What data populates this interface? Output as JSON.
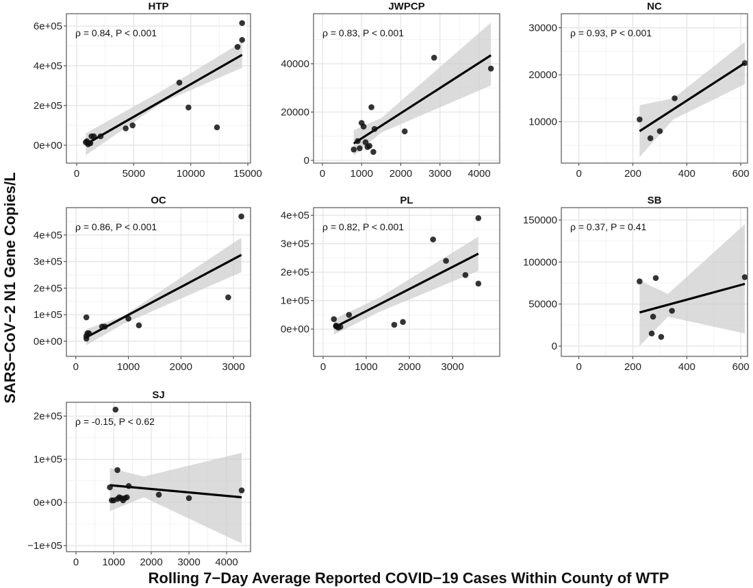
{
  "chart_data": {
    "type": "scatter",
    "ylabel": "SARS−CoV−2 N1 Gene Copies/L",
    "xlabel": "Rolling 7−Day Average Reported COVID−19 Cases Within County of WTP",
    "grid": true,
    "panels": [
      {
        "title": "HTP",
        "annotation": "ρ = 0.84, P < 0.001",
        "xlim": [
          -900,
          15240
        ],
        "ylim": [
          -90000,
          662000
        ],
        "xticks": [
          0,
          5000,
          10000,
          15000
        ],
        "xtick_labels": [
          "0",
          "5000",
          "10000",
          "15000"
        ],
        "yticks": [
          0,
          200000,
          400000,
          600000
        ],
        "ytick_labels": [
          "0e+00",
          "2e+05",
          "4e+05",
          "6e+05"
        ],
        "points": [
          [
            800,
            15000
          ],
          [
            900,
            20000
          ],
          [
            1000,
            5000
          ],
          [
            1100,
            10000
          ],
          [
            1200,
            10000
          ],
          [
            1300,
            45000
          ],
          [
            1500,
            45000
          ],
          [
            2100,
            45000
          ],
          [
            4300,
            85000
          ],
          [
            4900,
            100000
          ],
          [
            9000,
            315000
          ],
          [
            9800,
            190000
          ],
          [
            12300,
            90000
          ],
          [
            14100,
            495000
          ],
          [
            14500,
            530000
          ],
          [
            14500,
            615000
          ]
        ],
        "fit": [
          [
            800,
            5000
          ],
          [
            14500,
            455000
          ]
        ],
        "band": [
          [
            800,
            -50000,
            60000
          ],
          [
            7500,
            215000,
            275000
          ],
          [
            14500,
            390000,
            520000
          ]
        ]
      },
      {
        "title": "JWPCP",
        "annotation": "ρ = 0.83, P < 0.001",
        "xlim": [
          -227,
          4524
        ],
        "ylim": [
          -1130,
          60700
        ],
        "xticks": [
          0,
          1000,
          2000,
          3000,
          4000
        ],
        "xtick_labels": [
          "0",
          "1000",
          "2000",
          "3000",
          "4000"
        ],
        "yticks": [
          0,
          20000,
          40000
        ],
        "ytick_labels": [
          "0",
          "20000",
          "40000"
        ],
        "points": [
          [
            800,
            4500
          ],
          [
            900,
            8000
          ],
          [
            950,
            5000
          ],
          [
            1000,
            15500
          ],
          [
            1050,
            14000
          ],
          [
            1100,
            7500
          ],
          [
            1150,
            5500
          ],
          [
            1200,
            6000
          ],
          [
            1250,
            22000
          ],
          [
            1300,
            3500
          ],
          [
            1330,
            13000
          ],
          [
            2100,
            12000
          ],
          [
            2850,
            42500
          ],
          [
            4300,
            38000
          ]
        ],
        "fit": [
          [
            800,
            7000
          ],
          [
            4300,
            43500
          ]
        ],
        "band": [
          [
            800,
            2000,
            12500
          ],
          [
            1500,
            11500,
            17500
          ],
          [
            4300,
            31000,
            57000
          ]
        ]
      },
      {
        "title": "NC",
        "annotation": "ρ = 0.93, P < 0.001",
        "xlim": [
          -65,
          625
        ],
        "ylim": [
          1200,
          33000
        ],
        "xticks": [
          0,
          200,
          400,
          600
        ],
        "xtick_labels": [
          "0",
          "200",
          "400",
          "600"
        ],
        "yticks": [
          10000,
          20000,
          30000
        ],
        "ytick_labels": [
          "10000",
          "20000",
          "30000"
        ],
        "points": [
          [
            225,
            10500
          ],
          [
            265,
            6500
          ],
          [
            300,
            8000
          ],
          [
            355,
            15000
          ],
          [
            615,
            22500
          ]
        ],
        "fit": [
          [
            225,
            8000
          ],
          [
            615,
            22500
          ]
        ],
        "band": [
          [
            225,
            2500,
            13500
          ],
          [
            350,
            10500,
            15000
          ],
          [
            615,
            18000,
            27000
          ]
        ]
      },
      {
        "title": "OC",
        "annotation": "ρ = 0.86, P < 0.001",
        "xlim": [
          -180,
          3325
        ],
        "ylim": [
          -57000,
          503000
        ],
        "xticks": [
          0,
          1000,
          2000,
          3000
        ],
        "xtick_labels": [
          "0",
          "1000",
          "2000",
          "3000"
        ],
        "yticks": [
          0,
          100000,
          200000,
          300000,
          400000
        ],
        "ytick_labels": [
          "0e+00",
          "1e+05",
          "2e+05",
          "3e+05",
          "4e+05"
        ],
        "points": [
          [
            200,
            90000
          ],
          [
            200,
            20000
          ],
          [
            200,
            10000
          ],
          [
            220,
            30000
          ],
          [
            250,
            30000
          ],
          [
            500,
            55000
          ],
          [
            550,
            55000
          ],
          [
            1000,
            85000
          ],
          [
            1200,
            60000
          ],
          [
            2900,
            165000
          ],
          [
            3150,
            470000
          ]
        ],
        "fit": [
          [
            200,
            15000
          ],
          [
            3150,
            325000
          ]
        ],
        "band": [
          [
            200,
            -15000,
            45000
          ],
          [
            900,
            65000,
            95000
          ],
          [
            3150,
            260000,
            390000
          ]
        ]
      },
      {
        "title": "PL",
        "annotation": "ρ = 0.82, P < 0.001",
        "xlim": [
          -222,
          4095
        ],
        "ylim": [
          -96000,
          427000
        ],
        "xticks": [
          0,
          1000,
          2000,
          3000
        ],
        "xtick_labels": [
          "0",
          "1000",
          "2000",
          "3000"
        ],
        "yticks": [
          0,
          100000,
          200000,
          300000,
          400000
        ],
        "ytick_labels": [
          "0e+00",
          "1e+05",
          "2e+05",
          "3e+05",
          "4e+05"
        ],
        "points": [
          [
            250,
            35000
          ],
          [
            300,
            10000
          ],
          [
            350,
            5000
          ],
          [
            300,
            12000
          ],
          [
            400,
            8000
          ],
          [
            600,
            50000
          ],
          [
            1650,
            15000
          ],
          [
            1850,
            25000
          ],
          [
            2550,
            315000
          ],
          [
            2850,
            240000
          ],
          [
            3300,
            190000
          ],
          [
            3600,
            390000
          ],
          [
            3600,
            160000
          ]
        ],
        "fit": [
          [
            250,
            5000
          ],
          [
            3600,
            265000
          ]
        ],
        "band": [
          [
            250,
            -20000,
            35000
          ],
          [
            1300,
            60000,
            110000
          ],
          [
            3600,
            205000,
            325000
          ]
        ]
      },
      {
        "title": "SB",
        "annotation": "ρ = 0.37, P = 0.41",
        "xlim": [
          -65,
          625
        ],
        "ylim": [
          -12200,
          164700
        ],
        "xticks": [
          0,
          200,
          400,
          600
        ],
        "xtick_labels": [
          "0",
          "200",
          "400",
          "600"
        ],
        "yticks": [
          0,
          50000,
          100000,
          150000
        ],
        "ytick_labels": [
          "0",
          "50000",
          "100000",
          "150000"
        ],
        "points": [
          [
            225,
            77000
          ],
          [
            270,
            15000
          ],
          [
            275,
            35000
          ],
          [
            285,
            81000
          ],
          [
            305,
            11000
          ],
          [
            345,
            42000
          ],
          [
            615,
            82000
          ]
        ],
        "fit": [
          [
            225,
            40000
          ],
          [
            615,
            74000
          ]
        ],
        "band": [
          [
            225,
            0,
            78000
          ],
          [
            330,
            35000,
            62000
          ],
          [
            615,
            15000,
            145000
          ]
        ]
      },
      {
        "title": "SJ",
        "annotation": "ρ = -0.15, P < 0.62",
        "xlim": [
          -255,
          4636
        ],
        "ylim": [
          -114000,
          232000
        ],
        "xticks": [
          0,
          1000,
          2000,
          3000,
          4000
        ],
        "xtick_labels": [
          "0",
          "1000",
          "2000",
          "3000",
          "4000"
        ],
        "yticks": [
          -100000,
          0,
          100000,
          200000
        ],
        "ytick_labels": [
          "−1e+05",
          "0e+00",
          "1e+05",
          "2e+05"
        ],
        "points": [
          [
            900,
            35000
          ],
          [
            950,
            5000
          ],
          [
            1000,
            5000
          ],
          [
            1050,
            215000
          ],
          [
            1100,
            75000
          ],
          [
            1100,
            8000
          ],
          [
            1150,
            12000
          ],
          [
            1200,
            10000
          ],
          [
            1250,
            5000
          ],
          [
            1300,
            10000
          ],
          [
            1350,
            12000
          ],
          [
            1400,
            38000
          ],
          [
            2200,
            18000
          ],
          [
            3000,
            10000
          ],
          [
            4400,
            28000
          ]
        ],
        "fit": [
          [
            900,
            40000
          ],
          [
            4400,
            12000
          ]
        ],
        "band": [
          [
            900,
            -20000,
            80000
          ],
          [
            1800,
            12000,
            60000
          ],
          [
            4400,
            -95000,
            115000
          ]
        ]
      }
    ]
  }
}
